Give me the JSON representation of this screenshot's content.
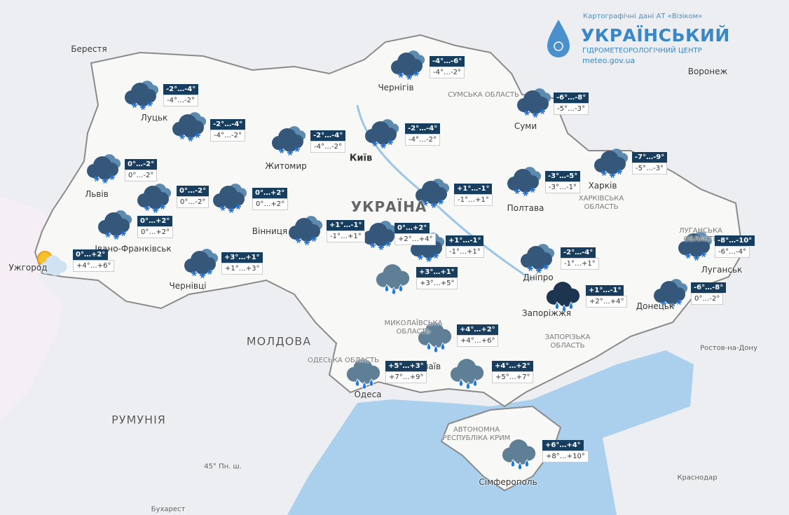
{
  "header": {
    "attribution": "Картографічні дані АТ «Візіком»",
    "title": "УКРАЇНСЬКИЙ",
    "subtitle": "ГІДРОМЕТЕОРОЛОГІЧНИЙ ЦЕНТР",
    "url": "meteo.gov.ua"
  },
  "places": [
    {
      "label": "Берестя",
      "kind": "city"
    },
    {
      "label": "Луцьк",
      "kind": "city"
    },
    {
      "label": "Житомир",
      "kind": "city"
    },
    {
      "label": "Київ",
      "kind": "capital"
    },
    {
      "label": "Чернігів",
      "kind": "city"
    },
    {
      "label": "Суми",
      "kind": "city"
    },
    {
      "label": "Воронеж",
      "kind": "city"
    },
    {
      "label": "Харків",
      "kind": "city"
    },
    {
      "label": "Полтава",
      "kind": "city"
    },
    {
      "label": "Львів",
      "kind": "city"
    },
    {
      "label": "Вінниця",
      "kind": "city"
    },
    {
      "label": "Чернівці",
      "kind": "city"
    },
    {
      "label": "Ужгород",
      "kind": "city"
    },
    {
      "label": "Івано-Франківськ",
      "kind": "city"
    },
    {
      "label": "Дніпро",
      "kind": "city"
    },
    {
      "label": "Запоріжжя",
      "kind": "city"
    },
    {
      "label": "Донецьк",
      "kind": "city"
    },
    {
      "label": "Луганськ",
      "kind": "city"
    },
    {
      "label": "Одеса",
      "kind": "city"
    },
    {
      "label": "Сімферополь",
      "kind": "city"
    },
    {
      "label": "Миколаїв",
      "kind": "city"
    },
    {
      "label": "Ростов-на-Дону",
      "kind": "minor"
    },
    {
      "label": "Краснодар",
      "kind": "minor"
    },
    {
      "label": "Бухарест",
      "kind": "minor"
    },
    {
      "label": "МОЛДОВА",
      "kind": "country"
    },
    {
      "label": "РУМУНІЯ",
      "kind": "country"
    },
    {
      "label": "УКРАЇНА",
      "kind": "home"
    },
    {
      "label": "СУМСЬКА ОБЛАСТЬ",
      "kind": "region"
    },
    {
      "label": "ХАРКІВСЬКА ОБЛАСТЬ",
      "kind": "region"
    },
    {
      "label": "ЗАПОРІЗЬКА ОБЛАСТЬ",
      "kind": "region"
    },
    {
      "label": "АВТОНОМНА РЕСПУБЛІКА КРИМ",
      "kind": "region"
    },
    {
      "label": "МИКОЛАЇВСЬКА ОБЛАСТЬ",
      "kind": "region"
    },
    {
      "label": "ОДЕСЬКА ОБЛАСТЬ",
      "kind": "region"
    },
    {
      "label": "ЛУГАНСЬКА ОБЛАСТЬ",
      "kind": "region"
    },
    {
      "label": "45° Пн. ш.",
      "kind": "minor"
    }
  ],
  "forecasts": [
    {
      "night": "-2°…-4°",
      "day": "-4°…-2°",
      "icon": "snow"
    },
    {
      "night": "-2°…-4°",
      "day": "-4°…-2°",
      "icon": "snow"
    },
    {
      "night": "-2°…-4°",
      "day": "-4°…-2°",
      "icon": "snow"
    },
    {
      "night": "-2°…-4°",
      "day": "-4°…-2°",
      "icon": "snow"
    },
    {
      "night": "-4°…-6°",
      "day": "-4°…-2°",
      "icon": "snow"
    },
    {
      "night": "-6°…-8°",
      "day": "-5°…-3°",
      "icon": "snow"
    },
    {
      "night": "-7°…-9°",
      "day": "-5°…-3°",
      "icon": "snow"
    },
    {
      "night": "-3°…-5°",
      "day": "-3°…-1°",
      "icon": "snow"
    },
    {
      "night": "+1°…-1°",
      "day": "-1°…+1°",
      "icon": "snow"
    },
    {
      "night": "0°…-2°",
      "day": "0°…-2°",
      "icon": "snow"
    },
    {
      "night": "0°…-2°",
      "day": "0°…-2°",
      "icon": "snow"
    },
    {
      "night": "0°…+2°",
      "day": "0°…+2°",
      "icon": "snow"
    },
    {
      "night": "0°…+2°",
      "day": "0°…+2°",
      "icon": "snow"
    },
    {
      "night": "0°…+2°",
      "day": "+4°…+6°",
      "icon": "sun"
    },
    {
      "night": "+3°…+1°",
      "day": "+1°…+3°",
      "icon": "snow"
    },
    {
      "night": "+1°…-1°",
      "day": "-1°…+1°",
      "icon": "snow"
    },
    {
      "night": "0°…+2°",
      "day": "+2°…+4°",
      "icon": "snow"
    },
    {
      "night": "+1°…-1°",
      "day": "-1°…+1°",
      "icon": "snow"
    },
    {
      "night": "+3°…+1°",
      "day": "+3°…+5°",
      "icon": "rain"
    },
    {
      "night": "-2°…-4°",
      "day": "-1°…+1°",
      "icon": "snow"
    },
    {
      "night": "+1°…-1°",
      "day": "+2°…+4°",
      "icon": "darkrain"
    },
    {
      "night": "-6°…-8°",
      "day": "0°…-2°",
      "icon": "snow"
    },
    {
      "night": "-8°…-10°",
      "day": "-6°…-4°",
      "icon": "snow"
    },
    {
      "night": "+4°…+2°",
      "day": "+4°…+6°",
      "icon": "rain"
    },
    {
      "night": "+5°…+3°",
      "day": "+7°…+9°",
      "icon": "rain"
    },
    {
      "night": "+4°…+2°",
      "day": "+5°…+7°",
      "icon": "rain"
    },
    {
      "night": "+6°…+4°",
      "day": "+8°…+10°",
      "icon": "rain"
    }
  ]
}
